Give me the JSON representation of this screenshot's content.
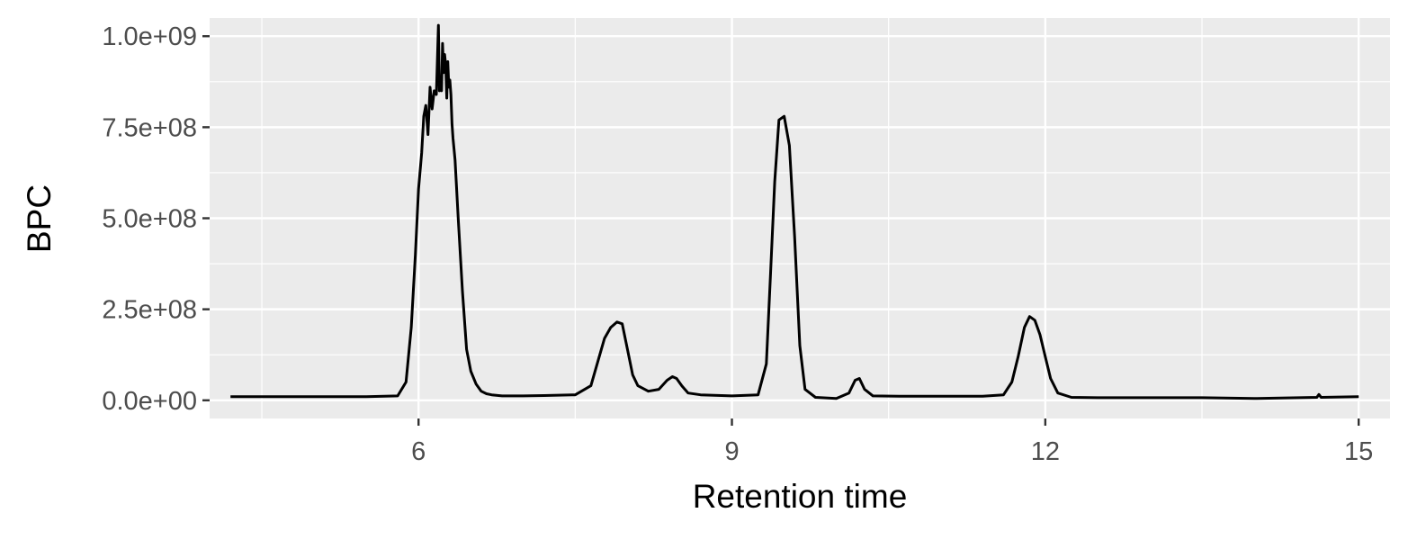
{
  "chart_data": {
    "type": "line",
    "xlabel": "Retention time",
    "ylabel": "BPC",
    "xlim": [
      4.0,
      15.3
    ],
    "ylim": [
      -50000000.0,
      1050000000.0
    ],
    "x_ticks": [
      6,
      9,
      12,
      15
    ],
    "x_tick_labels": [
      "6",
      "9",
      "12",
      "15"
    ],
    "y_ticks": [
      0,
      250000000,
      500000000,
      750000000,
      1000000000
    ],
    "y_tick_labels": [
      "0.0e+00",
      "2.5e+08",
      "5.0e+08",
      "7.5e+08",
      "1.0e+09"
    ],
    "grid": true,
    "legend": "none",
    "colors": {
      "panel": "#ebebeb",
      "grid": "#ffffff",
      "line": "#000000"
    },
    "series": [
      {
        "x": [
          4.2,
          5.5,
          5.8,
          5.88,
          5.93,
          5.97,
          6.0,
          6.03,
          6.05,
          6.07,
          6.09,
          6.11,
          6.13,
          6.15,
          6.17,
          6.18,
          6.19,
          6.2,
          6.21,
          6.22,
          6.23,
          6.24,
          6.25,
          6.26,
          6.27,
          6.28,
          6.29,
          6.3,
          6.31,
          6.32,
          6.33,
          6.35,
          6.38,
          6.42,
          6.46,
          6.5,
          6.55,
          6.6,
          6.65,
          6.7,
          6.8,
          7.0,
          7.2,
          7.5,
          7.65,
          7.72,
          7.78,
          7.84,
          7.9,
          7.95,
          8.0,
          8.05,
          8.1,
          8.2,
          8.3,
          8.38,
          8.43,
          8.47,
          8.52,
          8.58,
          8.7,
          9.0,
          9.25,
          9.33,
          9.37,
          9.41,
          9.45,
          9.5,
          9.55,
          9.6,
          9.65,
          9.7,
          9.8,
          10.0,
          10.12,
          10.18,
          10.22,
          10.27,
          10.35,
          10.6,
          11.0,
          11.4,
          11.6,
          11.68,
          11.74,
          11.8,
          11.85,
          11.9,
          11.95,
          12.0,
          12.05,
          12.12,
          12.25,
          12.5,
          13.5,
          14.0,
          14.6,
          14.62,
          14.64,
          15.0
        ],
        "y": [
          10000000,
          10000000,
          12000000,
          50000000,
          200000000,
          400000000,
          580000000,
          680000000,
          780000000,
          810000000,
          730000000,
          860000000,
          800000000,
          850000000,
          840000000,
          930000000,
          1030000000,
          850000000,
          870000000,
          850000000,
          980000000,
          900000000,
          950000000,
          920000000,
          830000000,
          930000000,
          860000000,
          880000000,
          840000000,
          760000000,
          720000000,
          660000000,
          500000000,
          300000000,
          140000000,
          80000000,
          45000000,
          25000000,
          18000000,
          15000000,
          12000000,
          12000000,
          13000000,
          15000000,
          40000000,
          110000000,
          170000000,
          200000000,
          215000000,
          210000000,
          140000000,
          70000000,
          40000000,
          25000000,
          30000000,
          55000000,
          65000000,
          60000000,
          40000000,
          20000000,
          15000000,
          12000000,
          15000000,
          100000000,
          350000000,
          600000000,
          770000000,
          780000000,
          700000000,
          450000000,
          150000000,
          30000000,
          8000000,
          5000000,
          20000000,
          55000000,
          60000000,
          30000000,
          12000000,
          11000000,
          11000000,
          11000000,
          15000000,
          50000000,
          120000000,
          200000000,
          230000000,
          220000000,
          180000000,
          120000000,
          60000000,
          20000000,
          8000000,
          7000000,
          7000000,
          5000000,
          8000000,
          16000000,
          8000000,
          10000000
        ]
      }
    ]
  }
}
